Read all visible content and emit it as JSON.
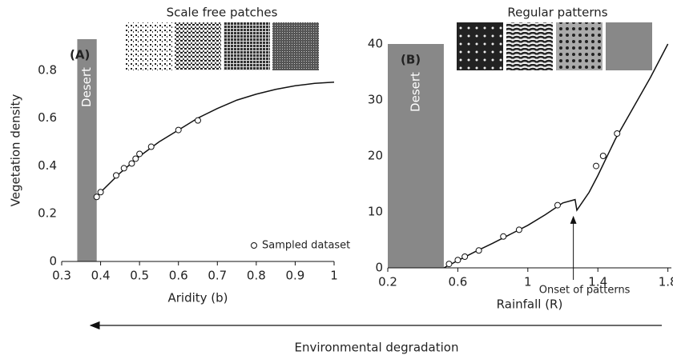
{
  "chart_data": [
    {
      "type": "line",
      "label": "(A)",
      "title": "Scale free patches",
      "x_label": "Aridity (b)",
      "y_label": "Vegetation density",
      "xlim": [
        0.3,
        1
      ],
      "xticks": [
        0.3,
        0.4,
        0.5,
        0.6,
        0.7,
        0.8,
        0.9,
        1
      ],
      "ylim": [
        0,
        0.93
      ],
      "yticks": [
        0,
        0.2,
        0.4,
        0.6,
        0.8
      ],
      "desert": {
        "label": "Desert",
        "range": [
          0.34,
          0.39
        ]
      },
      "line": {
        "color": "#111",
        "x": [
          0.39,
          0.4,
          0.45,
          0.5,
          0.55,
          0.6,
          0.65,
          0.7,
          0.75,
          0.8,
          0.85,
          0.9,
          0.95,
          1
        ],
        "y": [
          0.27,
          0.29,
          0.37,
          0.44,
          0.5,
          0.55,
          0.6,
          0.64,
          0.675,
          0.7,
          0.72,
          0.735,
          0.745,
          0.75
        ]
      },
      "samples": {
        "name": "Sampled dataset",
        "x": [
          0.39,
          0.4,
          0.44,
          0.46,
          0.48,
          0.49,
          0.5,
          0.53,
          0.6,
          0.65
        ],
        "y": [
          0.27,
          0.29,
          0.36,
          0.39,
          0.41,
          0.43,
          0.45,
          0.48,
          0.55,
          0.59
        ]
      }
    },
    {
      "type": "line",
      "label": "(B)",
      "title": "Regular patterns",
      "x_label": "Rainfall (R)",
      "xlim": [
        0.2,
        1.82
      ],
      "xticks": [
        0.2,
        0.6,
        1,
        1.4,
        1.8
      ],
      "ylim": [
        0,
        40
      ],
      "yticks": [
        0,
        10,
        20,
        30,
        40
      ],
      "desert": {
        "label": "Desert",
        "range": [
          0.2,
          0.52
        ]
      },
      "line": {
        "color": "#111",
        "x": [
          0.52,
          0.6,
          0.7,
          0.8,
          0.9,
          1.0,
          1.1,
          1.2,
          1.27,
          1.28,
          1.35,
          1.4,
          1.5,
          1.6,
          1.7,
          1.8
        ],
        "y": [
          0,
          1.3,
          2.9,
          4.4,
          6,
          7.6,
          9.5,
          11.6,
          12.2,
          10.3,
          13.5,
          16.5,
          23,
          28.5,
          34,
          40
        ]
      },
      "samples": {
        "x": [
          0.55,
          0.6,
          0.64,
          0.72,
          0.86,
          0.95,
          1.17,
          1.39,
          1.43,
          1.51
        ],
        "y": [
          0.7,
          1.4,
          2,
          3.1,
          5.6,
          6.8,
          11.2,
          18.2,
          20,
          24
        ]
      },
      "annotation": {
        "text": "Onset of patterns",
        "x": 1.26,
        "y": 10.3
      }
    }
  ],
  "footer": "Environmental degradation"
}
